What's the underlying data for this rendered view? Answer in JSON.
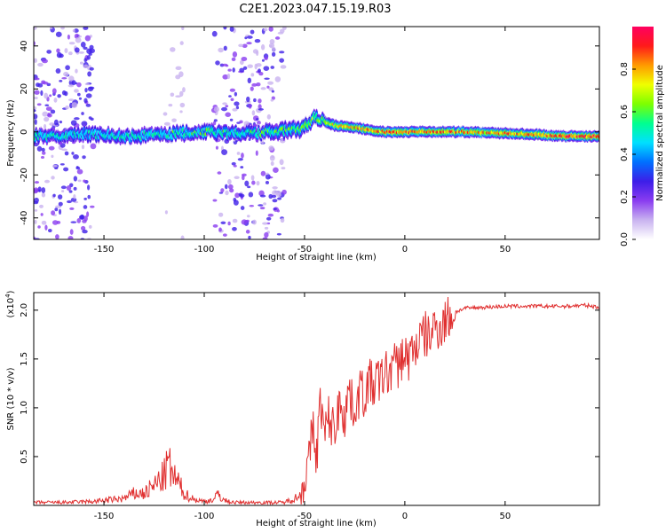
{
  "title": "C2E1.2023.047.15.19.R03",
  "chart_data": [
    {
      "type": "heatmap",
      "xlabel": "Height of straight line (km)",
      "ylabel": "Frequency (Hz)",
      "xlim": [
        -185,
        97
      ],
      "ylim": [
        -50,
        49
      ],
      "xticks": [
        -150,
        -100,
        -50,
        0,
        50
      ],
      "yticks": [
        -40,
        -20,
        0,
        20,
        40
      ],
      "grid": false,
      "colorbar": {
        "label": "Normalized spectral amplitude",
        "range": [
          0,
          1
        ],
        "ticks": [
          "0.0",
          "0.2",
          "0.4",
          "0.6",
          "0.8"
        ],
        "colors": [
          "#ffffff",
          "#c9b3f0",
          "#8a3cf0",
          "#3d1ee8",
          "#0070ff",
          "#00e0ff",
          "#00ff90",
          "#7dff00",
          "#f0ff00",
          "#ff9a00",
          "#ff1a1a",
          "#ff0060"
        ]
      },
      "noise_bands": [
        {
          "x": [
            -185,
            -155
          ],
          "level": 0.35
        },
        {
          "x": [
            -95,
            -60
          ],
          "level": 0.3
        },
        {
          "x": [
            -120,
            -110
          ],
          "level": 0.08
        }
      ],
      "ridge": [
        {
          "x": -185,
          "y": -2,
          "width": 6,
          "amp": 0.45
        },
        {
          "x": -160,
          "y": -1,
          "width": 6,
          "amp": 0.4
        },
        {
          "x": -140,
          "y": -2,
          "width": 6,
          "amp": 0.45
        },
        {
          "x": -120,
          "y": -1,
          "width": 6,
          "amp": 0.45
        },
        {
          "x": -100,
          "y": 0,
          "width": 6,
          "amp": 0.5
        },
        {
          "x": -80,
          "y": -1,
          "width": 6,
          "amp": 0.45
        },
        {
          "x": -65,
          "y": 0,
          "width": 7,
          "amp": 0.5
        },
        {
          "x": -50,
          "y": 2,
          "width": 7,
          "amp": 0.55
        },
        {
          "x": -45,
          "y": 7,
          "width": 6,
          "amp": 0.6
        },
        {
          "x": -35,
          "y": 3,
          "width": 5,
          "amp": 0.7
        },
        {
          "x": -25,
          "y": 2,
          "width": 5,
          "amp": 0.78
        },
        {
          "x": -10,
          "y": 0,
          "width": 5,
          "amp": 0.85
        },
        {
          "x": 10,
          "y": 0,
          "width": 5,
          "amp": 0.85
        },
        {
          "x": 30,
          "y": 0,
          "width": 5,
          "amp": 0.8
        },
        {
          "x": 60,
          "y": -1,
          "width": 5,
          "amp": 0.82
        },
        {
          "x": 80,
          "y": -2,
          "width": 5,
          "amp": 0.9
        },
        {
          "x": 97,
          "y": -2,
          "width": 5,
          "amp": 0.95
        }
      ]
    },
    {
      "type": "line",
      "xlabel": "Height of straight line (km)",
      "ylabel": "SNR (10 * v/v)",
      "y_multiplier": "(x10",
      "y_multiplier_exp": "4",
      "y_multiplier_close": ")",
      "xlim": [
        -185,
        97
      ],
      "ylim": [
        0,
        2.18
      ],
      "xticks": [
        -150,
        -100,
        -50,
        0,
        50
      ],
      "yticks": [
        "0.5",
        "1.0",
        "1.5",
        "2.0"
      ],
      "grid": false,
      "series": [
        {
          "color": "#e03030",
          "x": [
            -185,
            -170,
            -155,
            -140,
            -135,
            -130,
            -125,
            -120,
            -118,
            -115,
            -112,
            -110,
            -105,
            -100,
            -95,
            -93,
            -90,
            -85,
            -75,
            -60,
            -52,
            -50,
            -48,
            -46,
            -44,
            -42,
            -40,
            -38,
            -36,
            -34,
            -32,
            -30,
            -28,
            -26,
            -24,
            -22,
            -20,
            -18,
            -16,
            -14,
            -12,
            -10,
            -8,
            -6,
            -4,
            -2,
            0,
            2,
            4,
            6,
            8,
            10,
            12,
            14,
            16,
            18,
            20,
            22,
            25,
            30,
            40,
            50,
            60,
            70,
            80,
            90,
            97
          ],
          "y": [
            0.03,
            0.03,
            0.04,
            0.07,
            0.12,
            0.12,
            0.2,
            0.3,
            0.42,
            0.28,
            0.2,
            0.12,
            0.06,
            0.04,
            0.06,
            0.12,
            0.05,
            0.03,
            0.03,
            0.03,
            0.1,
            0.3,
            0.4,
            0.8,
            0.5,
            1.1,
            0.7,
            0.9,
            0.8,
            0.85,
            1.1,
            0.9,
            1.2,
            1.0,
            1.05,
            1.2,
            1.1,
            1.3,
            1.2,
            1.3,
            1.25,
            1.4,
            1.3,
            1.5,
            1.4,
            1.5,
            1.55,
            1.5,
            1.6,
            1.65,
            1.7,
            1.75,
            1.72,
            1.8,
            1.85,
            1.82,
            1.9,
            1.92,
            1.98,
            2.02,
            2.03,
            2.04,
            2.04,
            2.04,
            2.04,
            2.05,
            2.03
          ]
        }
      ]
    }
  ]
}
